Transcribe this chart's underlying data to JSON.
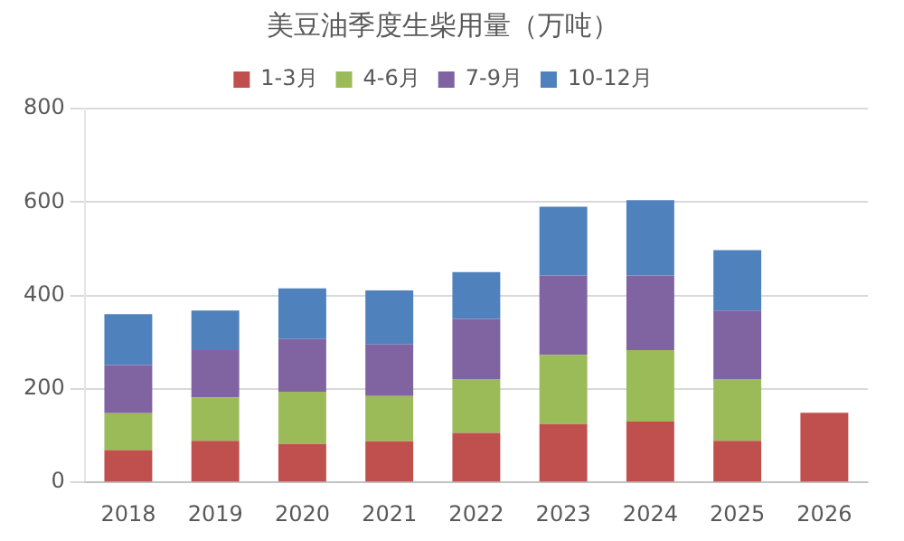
{
  "chart_data": {
    "type": "bar",
    "title": "美豆油季度生柴用量（万吨）",
    "stacked": true,
    "categories": [
      "2018",
      "2019",
      "2020",
      "2021",
      "2022",
      "2023",
      "2024",
      "2025",
      "2026"
    ],
    "series": [
      {
        "name": "1-3月",
        "color": "#c0504d",
        "values": [
          69,
          89,
          82,
          88,
          106,
          125,
          130,
          89,
          149
        ]
      },
      {
        "name": "4-6月",
        "color": "#9bbb59",
        "values": [
          79,
          93,
          112,
          97,
          115,
          148,
          153,
          132,
          null
        ]
      },
      {
        "name": "7-9月",
        "color": "#8064a2",
        "values": [
          103,
          101,
          113,
          110,
          129,
          170,
          160,
          147,
          null
        ]
      },
      {
        "name": "10-12月",
        "color": "#4f81bd",
        "values": [
          109,
          85,
          108,
          116,
          100,
          147,
          161,
          129,
          null
        ]
      }
    ],
    "ylim": [
      0,
      800
    ],
    "yticks": [
      0,
      200,
      400,
      600,
      800
    ],
    "grid": "y",
    "legend": "top"
  }
}
